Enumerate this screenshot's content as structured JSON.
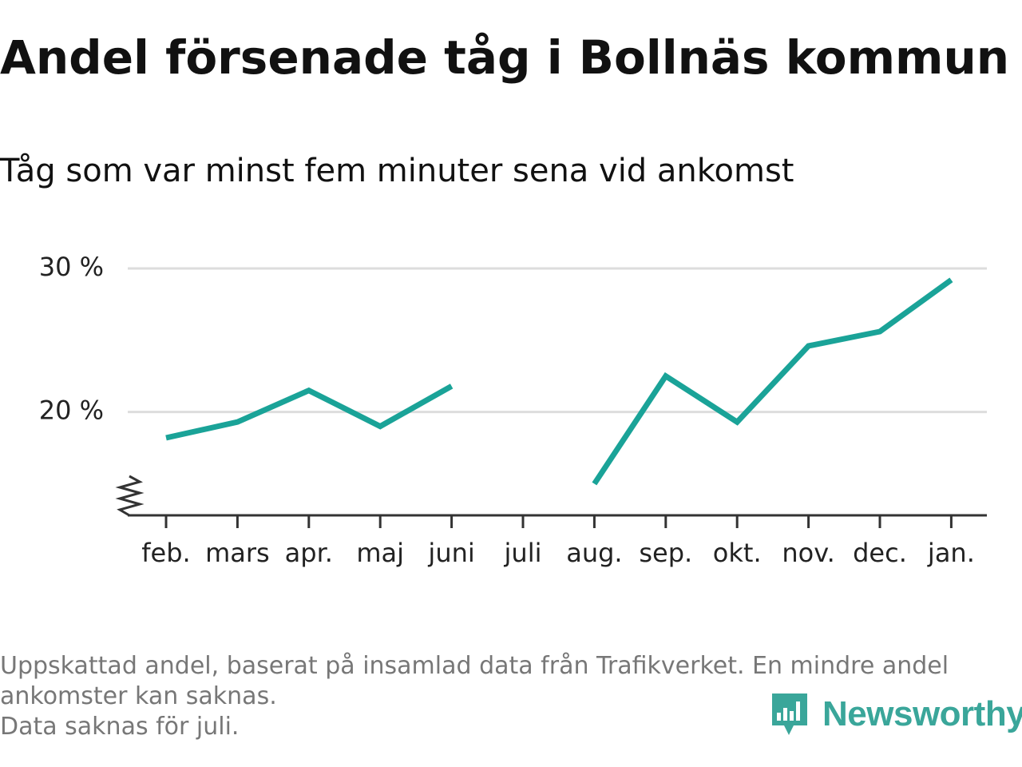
{
  "header": {
    "title": "Andel försenade tåg i Bollnäs kommun",
    "subtitle": "Tåg som var minst fem minuter sena vid ankomst"
  },
  "chart_data": {
    "type": "line",
    "title": "Andel försenade tåg i Bollnäs kommun",
    "subtitle": "Tåg som var minst fem minuter sena vid ankomst",
    "xlabel": "",
    "ylabel": "",
    "categories": [
      "feb.",
      "mars",
      "apr.",
      "maj",
      "juni",
      "juli",
      "aug.",
      "sep.",
      "okt.",
      "nov.",
      "dec.",
      "jan."
    ],
    "series": [
      {
        "values": [
          18.2,
          19.3,
          21.5,
          19.0,
          21.8,
          null,
          15.0,
          22.5,
          19.3,
          24.6,
          25.6,
          29.2
        ],
        "color": "#1aa398"
      }
    ],
    "ylim": [
      12.8,
      32
    ],
    "yticks": [
      20,
      30
    ],
    "ytick_labels": [
      "20 %",
      "30 %"
    ],
    "y_axis_break": true,
    "grid": true,
    "legend": "none"
  },
  "footnote": {
    "line1": "Uppskattad andel, baserat på insamlad data från Trafikverket. En mindre andel",
    "line2": "ankomster kan saknas.",
    "line3": "Data saknas för juli."
  },
  "logo": {
    "text": "Newsworthy",
    "icon": "bar-chart-speech-bubble-icon",
    "color": "#3aa69a"
  },
  "colors": {
    "series": "#1aa398",
    "gridline": "#dddddd",
    "axis": "#333333",
    "footnote": "#777777"
  }
}
